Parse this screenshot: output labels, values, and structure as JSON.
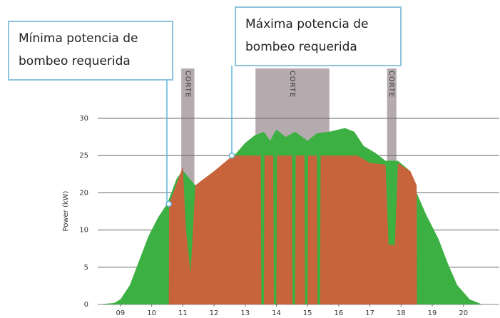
{
  "chart_data": {
    "type": "area",
    "y_label": "Power (kW)",
    "ylim": [
      0,
      30
    ],
    "yticks": [
      0,
      5,
      10,
      20,
      25,
      30
    ],
    "xlim": [
      8.27,
      21.15
    ],
    "xticks": [
      {
        "value": 9,
        "label": "09"
      },
      10,
      11,
      12,
      13,
      14,
      15,
      16,
      17,
      18,
      19,
      20
    ],
    "grid": true,
    "shaded": [
      {
        "from": 10.95,
        "to": 11.37,
        "label": "CORTE",
        "color": "#b5abaf"
      },
      {
        "from": 13.33,
        "to": 15.7,
        "label": "CORTE",
        "color": "#b5abaf"
      },
      {
        "from": 17.55,
        "to": 17.85,
        "label": "CORTE",
        "color": "#b5abaf"
      }
    ],
    "series": [
      {
        "color": "#3cb043",
        "x": [
          8.3,
          8.8,
          9.0,
          9.3,
          9.6,
          9.9,
          10.2,
          10.5,
          10.8,
          11.0,
          11.4,
          12.0,
          12.5,
          13.0,
          13.3,
          13.6,
          13.8,
          14.0,
          14.3,
          14.6,
          15.0,
          15.3,
          15.7,
          16.2,
          16.5,
          16.8,
          17.2,
          17.5,
          17.9,
          18.3,
          18.5,
          18.8,
          19.2,
          19.5,
          19.8,
          20.2,
          20.6
        ],
        "values": [
          0,
          0.2,
          0.7,
          2.6,
          5.9,
          9.2,
          13.3,
          17.1,
          21.9,
          23,
          21,
          22.9,
          24.3,
          26.7,
          27.7,
          28.2,
          27,
          28.5,
          27.5,
          28.2,
          27,
          28,
          28.2,
          28.7,
          28.2,
          26.3,
          25.3,
          24.3,
          24.3,
          22.9,
          20,
          14.2,
          8.8,
          5.5,
          2.6,
          0.7,
          0
        ]
      },
      {
        "color": "#c8643c",
        "x": [
          10.55,
          10.56,
          11.0,
          11.1,
          11.25,
          11.4,
          12.0,
          12.6,
          13.5,
          13.52,
          13.6,
          13.62,
          13.9,
          13.92,
          14.0,
          14.02,
          14.5,
          14.52,
          14.6,
          14.62,
          14.9,
          14.92,
          15.0,
          15.02,
          15.3,
          15.32,
          15.4,
          15.42,
          16.6,
          17.0,
          17.5,
          17.6,
          17.8,
          17.9,
          18.3,
          18.5,
          18.51
        ],
        "values": [
          0,
          17,
          23.5,
          10,
          4.2,
          21,
          22.9,
          25,
          25,
          0,
          0,
          25,
          25,
          0,
          0,
          25,
          25,
          0,
          0,
          25,
          25,
          0,
          0,
          25,
          25,
          0,
          0,
          25,
          25,
          24,
          23.8,
          8,
          8,
          24,
          22.9,
          21,
          0
        ]
      }
    ],
    "annotations": [
      {
        "lines": [
          "Mínima potencia de",
          "bombeo requerida"
        ],
        "x": 10.55,
        "y": 17
      },
      {
        "lines": [
          "Máxima potencia de",
          "bombeo requerida"
        ],
        "x": 12.57,
        "y": 25
      }
    ]
  }
}
